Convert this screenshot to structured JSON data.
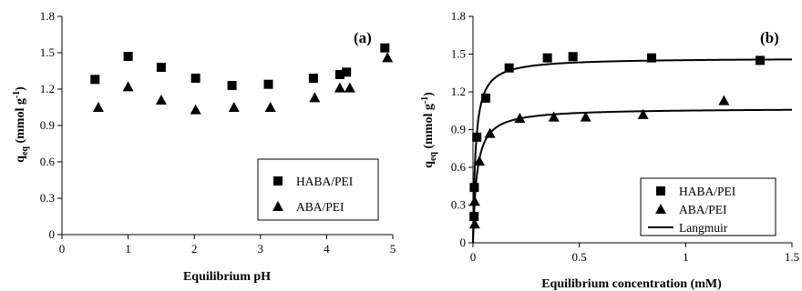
{
  "chart_data": [
    {
      "type": "scatter",
      "panel_label": "(a)",
      "xlabel": "Equilibrium pH",
      "ylabel": {
        "main": "q",
        "sub": "eq",
        "unit_pre": " (mmol g",
        "unit_sup": "-1",
        "unit_post": ")"
      },
      "xlim": [
        0,
        5
      ],
      "ylim": [
        0,
        1.8
      ],
      "xticks": [
        "0",
        "1",
        "2",
        "3",
        "4",
        "5"
      ],
      "yticks": [
        "0",
        "0.3",
        "0.6",
        "0.9",
        "1.2",
        "1.5",
        "1.8"
      ],
      "grid": false,
      "legend_position": "bottom-right",
      "series": [
        {
          "name": "HABA/PEI",
          "marker": "square",
          "points": [
            [
              0.5,
              1.28
            ],
            [
              1.0,
              1.47
            ],
            [
              1.5,
              1.38
            ],
            [
              2.02,
              1.29
            ],
            [
              2.57,
              1.23
            ],
            [
              3.12,
              1.24
            ],
            [
              3.8,
              1.29
            ],
            [
              4.2,
              1.32
            ],
            [
              4.3,
              1.34
            ],
            [
              4.88,
              1.54
            ]
          ]
        },
        {
          "name": "ABA/PEI",
          "marker": "triangle",
          "points": [
            [
              0.55,
              1.05
            ],
            [
              1.0,
              1.22
            ],
            [
              1.5,
              1.11
            ],
            [
              2.02,
              1.03
            ],
            [
              2.6,
              1.05
            ],
            [
              3.15,
              1.05
            ],
            [
              3.82,
              1.13
            ],
            [
              4.2,
              1.21
            ],
            [
              4.35,
              1.21
            ],
            [
              4.92,
              1.46
            ]
          ]
        }
      ]
    },
    {
      "type": "scatter",
      "panel_label": "(b)",
      "xlabel": "Equilibrium concentration (mM)",
      "ylabel": {
        "main": "q",
        "sub": "eq",
        "unit_pre": " (mmol g",
        "unit_sup": "-1",
        "unit_post": ")"
      },
      "xlim": [
        0,
        1.5
      ],
      "ylim": [
        0,
        1.8
      ],
      "xticks": [
        "0",
        "0.5",
        "1",
        "1.5"
      ],
      "yticks": [
        "0",
        "0.3",
        "0.6",
        "0.9",
        "1.2",
        "1.5",
        "1.8"
      ],
      "grid": false,
      "legend_position": "bottom-right",
      "series": [
        {
          "name": "HABA/PEI",
          "marker": "square",
          "points": [
            [
              0.005,
              0.21
            ],
            [
              0.006,
              0.44
            ],
            [
              0.018,
              0.84
            ],
            [
              0.06,
              1.15
            ],
            [
              0.17,
              1.39
            ],
            [
              0.35,
              1.47
            ],
            [
              0.47,
              1.48
            ],
            [
              0.84,
              1.47
            ],
            [
              1.35,
              1.45
            ]
          ]
        },
        {
          "name": "ABA/PEI",
          "marker": "triangle",
          "points": [
            [
              0.008,
              0.15
            ],
            [
              0.008,
              0.33
            ],
            [
              0.03,
              0.65
            ],
            [
              0.08,
              0.87
            ],
            [
              0.22,
              0.99
            ],
            [
              0.38,
              1.0
            ],
            [
              0.53,
              1.0
            ],
            [
              0.8,
              1.02
            ],
            [
              1.18,
              1.13
            ]
          ]
        },
        {
          "name": "Langmuir",
          "marker": "line",
          "curves": [
            {
              "for": "HABA/PEI",
              "qmax": 1.47,
              "K": 80
            },
            {
              "for": "ABA/PEI",
              "qmax": 1.07,
              "K": 55
            }
          ]
        }
      ]
    }
  ]
}
